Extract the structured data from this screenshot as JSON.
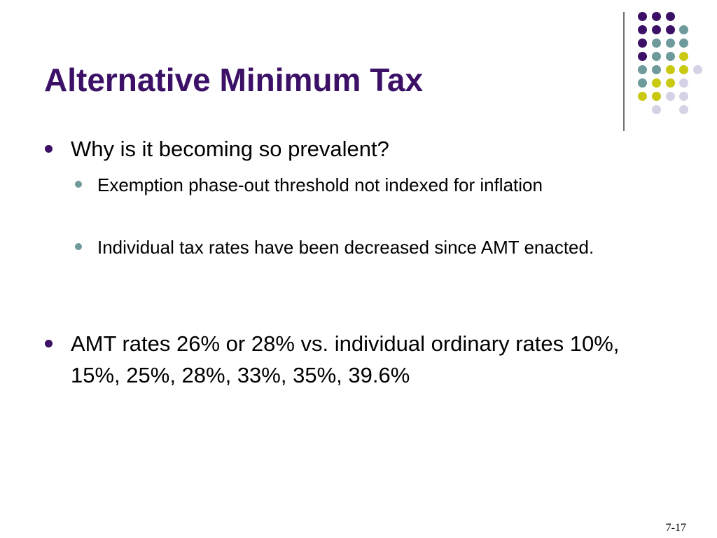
{
  "slide": {
    "title": "Alternative Minimum Tax",
    "page_number": "7-17"
  },
  "bullets": [
    {
      "level": 1,
      "text": "Why is it becoming so prevalent?",
      "children": [
        {
          "level": 2,
          "text": "Exemption phase-out threshold not indexed for inflation"
        },
        {
          "level": 2,
          "text": "Individual tax rates have been decreased since AMT enacted."
        }
      ]
    },
    {
      "level": 1,
      "text": "AMT rates 26% or 28% vs. individual ordinary rates 10%, 15%, 25%, 28%, 33%, 35%, 39.6%"
    }
  ],
  "colors": {
    "title": "#3b1066",
    "dot_purple": "#3b1066",
    "dot_teal": "#6e9a9c",
    "dot_yellow": "#c9c912",
    "dot_lavender": "#d5d2e6"
  }
}
